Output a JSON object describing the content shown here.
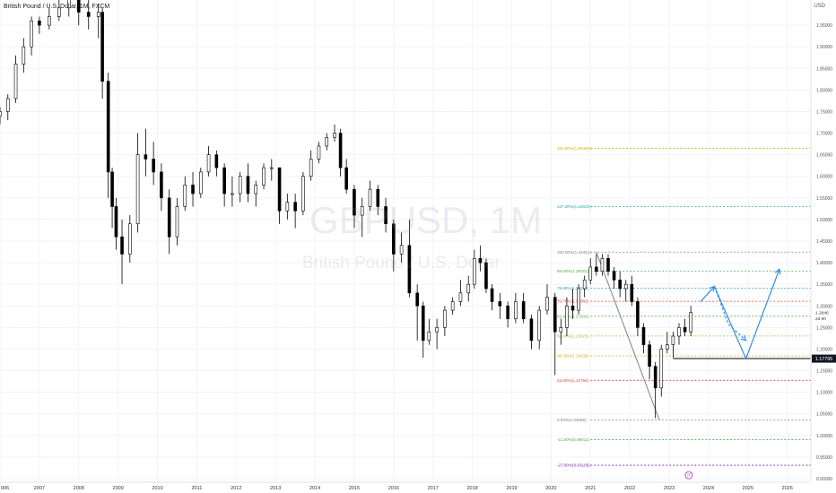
{
  "header": {
    "symbol_title": "British Pound / U.S. Dollar, 1M, FXCM",
    "currency": "USD"
  },
  "watermark": {
    "symbol": "GBPUSD, 1M",
    "description": "British Pound / U.S. Dollar"
  },
  "colors": {
    "candle_up": "#ffffff",
    "candle_down": "#000000",
    "candle_outline": "#000000",
    "fib_line": "#808080",
    "projection": "#2f8de8",
    "last_price_bg": "#131722"
  },
  "chart_data": {
    "type": "candlestick",
    "x_axis": {
      "tick_labels": [
        "006",
        "2007",
        "2008",
        "2009",
        "2010",
        "2011",
        "2012",
        "2013",
        "2014",
        "2015",
        "2016",
        "2017",
        "2018",
        "2019",
        "2020",
        "2021",
        "2022",
        "2023",
        "2024",
        "2025",
        "2026"
      ],
      "range": [
        2006.0,
        2026.6
      ]
    },
    "y_axis": {
      "tick_labels": [
        "1.95000",
        "1.90000",
        "1.85000",
        "1.80000",
        "1.75000",
        "1.70000",
        "1.65000",
        "1.60000",
        "1.55000",
        "1.50000",
        "1.45000",
        "1.40000",
        "1.35000",
        "1.30000",
        "1.25000",
        "1.20000",
        "1.15000",
        "1.10000",
        "1.05000",
        "1.00000",
        "0.95000",
        "0.90000"
      ],
      "range": [
        0.9,
        2.0
      ]
    },
    "axis_price_labels": [
      {
        "text": "1.2846",
        "value": 1.2846
      },
      {
        "text": "2d 9h",
        "value": 1.272
      }
    ],
    "last_price": {
      "value": 1.17795,
      "label": "1.17795"
    },
    "support_line": {
      "value": 1.178,
      "x_start": 2023.1,
      "x_end": 2026.6
    },
    "fibonacci_levels": [
      {
        "label": "161.80%(1.66466)",
        "value": 1.66466,
        "color": "#c8b400"
      },
      {
        "label": "127.20%(1.53020)",
        "value": 1.5302,
        "color": "#26a69a"
      },
      {
        "label": "100.00%(1.42451)",
        "value": 1.42451,
        "color": "#808080"
      },
      {
        "label": "88.60%(1.38022)",
        "value": 1.38022,
        "color": "#4caf50"
      },
      {
        "label": "78.60%(1.34133)",
        "value": 1.34133,
        "color": "#26a69a"
      },
      {
        "label": "70.70%(1.31068)",
        "value": 1.31068,
        "color": "#e53935"
      },
      {
        "label": "61.80%(1.27606)",
        "value": 1.27606,
        "color": "#4caf50"
      },
      {
        "label": "50.00%(1.23023)",
        "value": 1.23023,
        "color": "#8bc34a"
      },
      {
        "label": "38.20%(1.18439)",
        "value": 1.18439,
        "color": "#c8b400"
      },
      {
        "label": "23.60%(1.12766)",
        "value": 1.12766,
        "color": "#e53935"
      },
      {
        "label": "0.00%(1.03596)",
        "value": 1.03596,
        "color": "#808080"
      },
      {
        "label": "-11.80%(0.99011)",
        "value": 0.99011,
        "color": "#4caf50"
      },
      {
        "label": "-27.00%(0.93105)",
        "value": 0.93105,
        "color": "#7b1fa2"
      }
    ],
    "fib_label_x": 2020.15,
    "fib_line_range": [
      2021.0,
      2026.6
    ],
    "fib_anchor_line": [
      [
        2021.15,
        1.42451
      ],
      [
        2022.75,
        1.03596
      ]
    ],
    "projection_path": [
      [
        2023.8,
        1.31
      ],
      [
        2024.15,
        1.345
      ],
      [
        2024.95,
        1.178
      ],
      [
        2025.8,
        1.385
      ]
    ],
    "projection_dashed_path": [
      [
        2024.15,
        1.345
      ],
      [
        2024.5,
        1.258
      ],
      [
        2024.95,
        1.22
      ]
    ],
    "event_marker": {
      "text": "ℱ",
      "x": 2023.5,
      "y": 0.908
    },
    "candles": [
      {
        "t": 2006.0,
        "o": 1.74,
        "h": 1.76,
        "l": 1.72,
        "c": 1.75
      },
      {
        "t": 2006.2,
        "o": 1.75,
        "h": 1.79,
        "l": 1.73,
        "c": 1.78
      },
      {
        "t": 2006.4,
        "o": 1.78,
        "h": 1.88,
        "l": 1.77,
        "c": 1.86
      },
      {
        "t": 2006.6,
        "o": 1.86,
        "h": 1.92,
        "l": 1.84,
        "c": 1.9
      },
      {
        "t": 2006.8,
        "o": 1.9,
        "h": 1.97,
        "l": 1.88,
        "c": 1.96
      },
      {
        "t": 2007.0,
        "o": 1.96,
        "h": 1.97,
        "l": 1.93,
        "c": 1.95
      },
      {
        "t": 2007.25,
        "o": 1.95,
        "h": 1.99,
        "l": 1.94,
        "c": 1.97
      },
      {
        "t": 2007.5,
        "o": 1.97,
        "h": 2.01,
        "l": 1.96,
        "c": 1.99
      },
      {
        "t": 2007.75,
        "o": 1.99,
        "h": 2.08,
        "l": 1.97,
        "c": 2.04
      },
      {
        "t": 2008.0,
        "o": 2.04,
        "h": 2.04,
        "l": 1.95,
        "c": 1.98
      },
      {
        "t": 2008.25,
        "o": 1.98,
        "h": 2.01,
        "l": 1.94,
        "c": 1.97
      },
      {
        "t": 2008.5,
        "o": 1.97,
        "h": 2.0,
        "l": 1.92,
        "c": 1.98
      },
      {
        "t": 2008.6,
        "o": 1.98,
        "h": 1.99,
        "l": 1.78,
        "c": 1.82
      },
      {
        "t": 2008.75,
        "o": 1.82,
        "h": 1.84,
        "l": 1.55,
        "c": 1.61
      },
      {
        "t": 2008.85,
        "o": 1.61,
        "h": 1.62,
        "l": 1.48,
        "c": 1.53
      },
      {
        "t": 2008.95,
        "o": 1.53,
        "h": 1.55,
        "l": 1.43,
        "c": 1.46
      },
      {
        "t": 2009.1,
        "o": 1.46,
        "h": 1.5,
        "l": 1.35,
        "c": 1.42
      },
      {
        "t": 2009.3,
        "o": 1.42,
        "h": 1.51,
        "l": 1.4,
        "c": 1.49
      },
      {
        "t": 2009.5,
        "o": 1.49,
        "h": 1.7,
        "l": 1.47,
        "c": 1.65
      },
      {
        "t": 2009.7,
        "o": 1.65,
        "h": 1.71,
        "l": 1.6,
        "c": 1.64
      },
      {
        "t": 2009.9,
        "o": 1.64,
        "h": 1.68,
        "l": 1.58,
        "c": 1.61
      },
      {
        "t": 2010.1,
        "o": 1.61,
        "h": 1.63,
        "l": 1.52,
        "c": 1.55
      },
      {
        "t": 2010.3,
        "o": 1.55,
        "h": 1.57,
        "l": 1.42,
        "c": 1.46
      },
      {
        "t": 2010.5,
        "o": 1.46,
        "h": 1.55,
        "l": 1.44,
        "c": 1.53
      },
      {
        "t": 2010.7,
        "o": 1.53,
        "h": 1.6,
        "l": 1.52,
        "c": 1.58
      },
      {
        "t": 2010.9,
        "o": 1.58,
        "h": 1.61,
        "l": 1.53,
        "c": 1.56
      },
      {
        "t": 2011.1,
        "o": 1.56,
        "h": 1.62,
        "l": 1.55,
        "c": 1.61
      },
      {
        "t": 2011.3,
        "o": 1.61,
        "h": 1.67,
        "l": 1.6,
        "c": 1.65
      },
      {
        "t": 2011.5,
        "o": 1.65,
        "h": 1.66,
        "l": 1.6,
        "c": 1.62
      },
      {
        "t": 2011.7,
        "o": 1.62,
        "h": 1.63,
        "l": 1.53,
        "c": 1.56
      },
      {
        "t": 2011.9,
        "o": 1.56,
        "h": 1.6,
        "l": 1.53,
        "c": 1.56
      },
      {
        "t": 2012.1,
        "o": 1.56,
        "h": 1.61,
        "l": 1.54,
        "c": 1.6
      },
      {
        "t": 2012.3,
        "o": 1.6,
        "h": 1.63,
        "l": 1.54,
        "c": 1.56
      },
      {
        "t": 2012.5,
        "o": 1.56,
        "h": 1.59,
        "l": 1.53,
        "c": 1.58
      },
      {
        "t": 2012.7,
        "o": 1.58,
        "h": 1.63,
        "l": 1.57,
        "c": 1.62
      },
      {
        "t": 2012.9,
        "o": 1.62,
        "h": 1.64,
        "l": 1.59,
        "c": 1.62
      },
      {
        "t": 2013.1,
        "o": 1.62,
        "h": 1.62,
        "l": 1.49,
        "c": 1.52
      },
      {
        "t": 2013.3,
        "o": 1.52,
        "h": 1.56,
        "l": 1.5,
        "c": 1.54
      },
      {
        "t": 2013.5,
        "o": 1.54,
        "h": 1.56,
        "l": 1.48,
        "c": 1.52
      },
      {
        "t": 2013.7,
        "o": 1.52,
        "h": 1.61,
        "l": 1.51,
        "c": 1.6
      },
      {
        "t": 2013.9,
        "o": 1.6,
        "h": 1.66,
        "l": 1.59,
        "c": 1.64
      },
      {
        "t": 2014.1,
        "o": 1.64,
        "h": 1.68,
        "l": 1.63,
        "c": 1.67
      },
      {
        "t": 2014.3,
        "o": 1.67,
        "h": 1.7,
        "l": 1.66,
        "c": 1.69
      },
      {
        "t": 2014.5,
        "o": 1.69,
        "h": 1.72,
        "l": 1.68,
        "c": 1.7
      },
      {
        "t": 2014.65,
        "o": 1.7,
        "h": 1.71,
        "l": 1.6,
        "c": 1.62
      },
      {
        "t": 2014.8,
        "o": 1.62,
        "h": 1.64,
        "l": 1.56,
        "c": 1.57
      },
      {
        "t": 2015.0,
        "o": 1.57,
        "h": 1.58,
        "l": 1.48,
        "c": 1.51
      },
      {
        "t": 2015.2,
        "o": 1.51,
        "h": 1.55,
        "l": 1.46,
        "c": 1.53
      },
      {
        "t": 2015.4,
        "o": 1.53,
        "h": 1.59,
        "l": 1.52,
        "c": 1.57
      },
      {
        "t": 2015.6,
        "o": 1.57,
        "h": 1.58,
        "l": 1.51,
        "c": 1.53
      },
      {
        "t": 2015.8,
        "o": 1.53,
        "h": 1.55,
        "l": 1.47,
        "c": 1.49
      },
      {
        "t": 2016.0,
        "o": 1.49,
        "h": 1.5,
        "l": 1.38,
        "c": 1.42
      },
      {
        "t": 2016.2,
        "o": 1.42,
        "h": 1.47,
        "l": 1.4,
        "c": 1.44
      },
      {
        "t": 2016.4,
        "o": 1.44,
        "h": 1.5,
        "l": 1.32,
        "c": 1.33
      },
      {
        "t": 2016.6,
        "o": 1.33,
        "h": 1.35,
        "l": 1.22,
        "c": 1.3
      },
      {
        "t": 2016.75,
        "o": 1.3,
        "h": 1.31,
        "l": 1.18,
        "c": 1.22
      },
      {
        "t": 2016.9,
        "o": 1.22,
        "h": 1.27,
        "l": 1.21,
        "c": 1.24
      },
      {
        "t": 2017.1,
        "o": 1.24,
        "h": 1.27,
        "l": 1.2,
        "c": 1.25
      },
      {
        "t": 2017.3,
        "o": 1.25,
        "h": 1.3,
        "l": 1.23,
        "c": 1.29
      },
      {
        "t": 2017.5,
        "o": 1.29,
        "h": 1.32,
        "l": 1.28,
        "c": 1.31
      },
      {
        "t": 2017.7,
        "o": 1.31,
        "h": 1.36,
        "l": 1.3,
        "c": 1.33
      },
      {
        "t": 2017.9,
        "o": 1.33,
        "h": 1.37,
        "l": 1.31,
        "c": 1.35
      },
      {
        "t": 2018.05,
        "o": 1.35,
        "h": 1.43,
        "l": 1.34,
        "c": 1.41
      },
      {
        "t": 2018.2,
        "o": 1.41,
        "h": 1.44,
        "l": 1.38,
        "c": 1.4
      },
      {
        "t": 2018.35,
        "o": 1.4,
        "h": 1.41,
        "l": 1.33,
        "c": 1.34
      },
      {
        "t": 2018.5,
        "o": 1.34,
        "h": 1.35,
        "l": 1.29,
        "c": 1.31
      },
      {
        "t": 2018.7,
        "o": 1.31,
        "h": 1.33,
        "l": 1.27,
        "c": 1.3
      },
      {
        "t": 2018.9,
        "o": 1.3,
        "h": 1.31,
        "l": 1.25,
        "c": 1.27
      },
      {
        "t": 2019.1,
        "o": 1.27,
        "h": 1.33,
        "l": 1.26,
        "c": 1.31
      },
      {
        "t": 2019.3,
        "o": 1.31,
        "h": 1.33,
        "l": 1.26,
        "c": 1.27
      },
      {
        "t": 2019.5,
        "o": 1.27,
        "h": 1.28,
        "l": 1.2,
        "c": 1.22
      },
      {
        "t": 2019.7,
        "o": 1.22,
        "h": 1.3,
        "l": 1.2,
        "c": 1.29
      },
      {
        "t": 2019.9,
        "o": 1.29,
        "h": 1.35,
        "l": 1.28,
        "c": 1.32
      },
      {
        "t": 2020.1,
        "o": 1.32,
        "h": 1.33,
        "l": 1.14,
        "c": 1.24
      },
      {
        "t": 2020.25,
        "o": 1.24,
        "h": 1.27,
        "l": 1.21,
        "c": 1.25
      },
      {
        "t": 2020.4,
        "o": 1.25,
        "h": 1.32,
        "l": 1.23,
        "c": 1.3
      },
      {
        "t": 2020.55,
        "o": 1.3,
        "h": 1.34,
        "l": 1.27,
        "c": 1.29
      },
      {
        "t": 2020.7,
        "o": 1.29,
        "h": 1.35,
        "l": 1.28,
        "c": 1.34
      },
      {
        "t": 2020.85,
        "o": 1.34,
        "h": 1.37,
        "l": 1.32,
        "c": 1.36
      },
      {
        "t": 2021.0,
        "o": 1.36,
        "h": 1.41,
        "l": 1.35,
        "c": 1.39
      },
      {
        "t": 2021.15,
        "o": 1.39,
        "h": 1.42,
        "l": 1.37,
        "c": 1.38
      },
      {
        "t": 2021.3,
        "o": 1.38,
        "h": 1.42,
        "l": 1.37,
        "c": 1.41
      },
      {
        "t": 2021.45,
        "o": 1.41,
        "h": 1.42,
        "l": 1.37,
        "c": 1.38
      },
      {
        "t": 2021.6,
        "o": 1.38,
        "h": 1.39,
        "l": 1.34,
        "c": 1.36
      },
      {
        "t": 2021.75,
        "o": 1.36,
        "h": 1.38,
        "l": 1.32,
        "c": 1.34
      },
      {
        "t": 2021.9,
        "o": 1.34,
        "h": 1.36,
        "l": 1.31,
        "c": 1.35
      },
      {
        "t": 2022.05,
        "o": 1.35,
        "h": 1.37,
        "l": 1.3,
        "c": 1.31
      },
      {
        "t": 2022.2,
        "o": 1.31,
        "h": 1.32,
        "l": 1.23,
        "c": 1.25
      },
      {
        "t": 2022.35,
        "o": 1.25,
        "h": 1.26,
        "l": 1.19,
        "c": 1.21
      },
      {
        "t": 2022.5,
        "o": 1.21,
        "h": 1.22,
        "l": 1.13,
        "c": 1.16
      },
      {
        "t": 2022.65,
        "o": 1.16,
        "h": 1.17,
        "l": 1.04,
        "c": 1.11
      },
      {
        "t": 2022.8,
        "o": 1.11,
        "h": 1.21,
        "l": 1.09,
        "c": 1.2
      },
      {
        "t": 2022.95,
        "o": 1.2,
        "h": 1.24,
        "l": 1.19,
        "c": 1.21
      },
      {
        "t": 2023.1,
        "o": 1.21,
        "h": 1.24,
        "l": 1.18,
        "c": 1.23
      },
      {
        "t": 2023.25,
        "o": 1.23,
        "h": 1.26,
        "l": 1.21,
        "c": 1.25
      },
      {
        "t": 2023.4,
        "o": 1.25,
        "h": 1.27,
        "l": 1.23,
        "c": 1.24
      },
      {
        "t": 2023.55,
        "o": 1.24,
        "h": 1.3,
        "l": 1.23,
        "c": 1.285
      }
    ]
  }
}
